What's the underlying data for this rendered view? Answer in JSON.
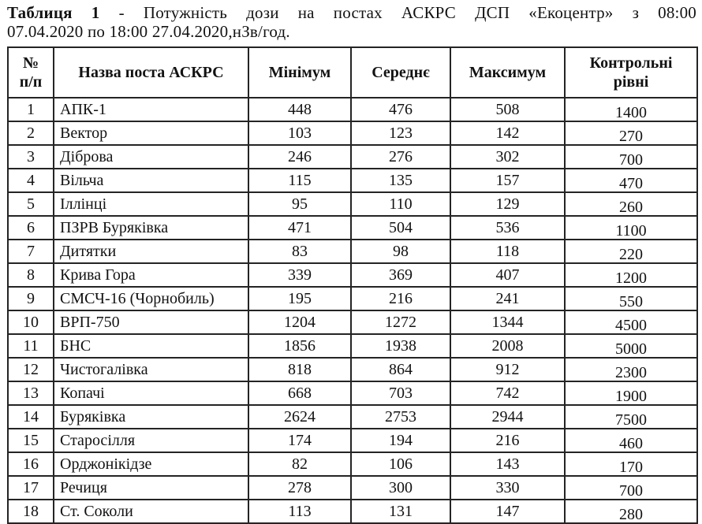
{
  "title": {
    "label": "Таблиця 1",
    "line1_rest": " - Потужність дози на постах АСКРС ДСП «Екоцентр» з 08:00",
    "line2": "07.04.2020 по 18:00 27.04.2020,нЗв/год."
  },
  "table": {
    "columns": [
      {
        "key": "num",
        "label": "№\nп/п"
      },
      {
        "key": "name",
        "label": "Назва поста АСКРС"
      },
      {
        "key": "min",
        "label": "Мінімум"
      },
      {
        "key": "avg",
        "label": "Середнє"
      },
      {
        "key": "max",
        "label": "Максимум"
      },
      {
        "key": "ctrl",
        "label": "Контрольні\nрівні"
      }
    ],
    "rows": [
      {
        "num": "1",
        "name": "АПК-1",
        "min": "448",
        "avg": "476",
        "max": "508",
        "ctrl": "1400"
      },
      {
        "num": "2",
        "name": "Вектор",
        "min": "103",
        "avg": "123",
        "max": "142",
        "ctrl": "270"
      },
      {
        "num": "3",
        "name": "Діброва",
        "min": "246",
        "avg": "276",
        "max": "302",
        "ctrl": "700"
      },
      {
        "num": "4",
        "name": "Вільча",
        "min": "115",
        "avg": "135",
        "max": "157",
        "ctrl": "470"
      },
      {
        "num": "5",
        "name": "Іллінці",
        "min": "95",
        "avg": "110",
        "max": "129",
        "ctrl": "260"
      },
      {
        "num": "6",
        "name": "ПЗРВ Буряківка",
        "min": "471",
        "avg": "504",
        "max": "536",
        "ctrl": "1100"
      },
      {
        "num": "7",
        "name": "Дитятки",
        "min": "83",
        "avg": "98",
        "max": "118",
        "ctrl": "220"
      },
      {
        "num": "8",
        "name": "Крива Гора",
        "min": "339",
        "avg": "369",
        "max": "407",
        "ctrl": "1200"
      },
      {
        "num": "9",
        "name": "СМСЧ-16 (Чорнобиль)",
        "min": "195",
        "avg": "216",
        "max": "241",
        "ctrl": "550"
      },
      {
        "num": "10",
        "name": "ВРП-750",
        "min": "1204",
        "avg": "1272",
        "max": "1344",
        "ctrl": "4500"
      },
      {
        "num": "11",
        "name": "БНС",
        "min": "1856",
        "avg": "1938",
        "max": "2008",
        "ctrl": "5000"
      },
      {
        "num": "12",
        "name": "Чистогалівка",
        "min": "818",
        "avg": "864",
        "max": "912",
        "ctrl": "2300"
      },
      {
        "num": "13",
        "name": "Копачі",
        "min": "668",
        "avg": "703",
        "max": "742",
        "ctrl": "1900"
      },
      {
        "num": "14",
        "name": "Буряківка",
        "min": "2624",
        "avg": "2753",
        "max": "2944",
        "ctrl": "7500"
      },
      {
        "num": "15",
        "name": "Старосілля",
        "min": "174",
        "avg": "194",
        "max": "216",
        "ctrl": "460"
      },
      {
        "num": "16",
        "name": "Орджонікідзе",
        "min": "82",
        "avg": "106",
        "max": "143",
        "ctrl": "170"
      },
      {
        "num": "17",
        "name": "Речиця",
        "min": "278",
        "avg": "300",
        "max": "330",
        "ctrl": "700"
      },
      {
        "num": "18",
        "name": "Ст. Соколи",
        "min": "113",
        "avg": "131",
        "max": "147",
        "ctrl": "280"
      }
    ]
  }
}
